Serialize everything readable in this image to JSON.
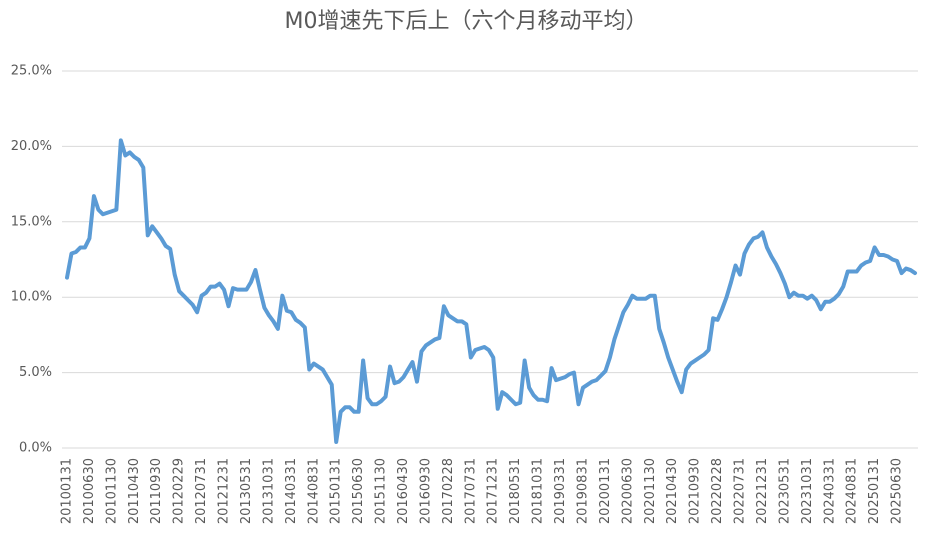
{
  "chart_data": {
    "type": "line",
    "title": "M0增速先下后上（六个月移动平均）",
    "categories": [
      "20100131",
      null,
      null,
      null,
      null,
      "20100630",
      null,
      null,
      null,
      null,
      "20101130",
      null,
      null,
      null,
      null,
      "20110430",
      null,
      null,
      null,
      null,
      "20110930",
      null,
      null,
      null,
      null,
      "20120229",
      null,
      null,
      null,
      null,
      "20120731",
      null,
      null,
      null,
      null,
      "20121231",
      null,
      null,
      null,
      null,
      "20130531",
      null,
      null,
      null,
      null,
      "20131031",
      null,
      null,
      null,
      null,
      "20140331",
      null,
      null,
      null,
      null,
      "20140831",
      null,
      null,
      null,
      null,
      "20150131",
      null,
      null,
      null,
      null,
      "20150630",
      null,
      null,
      null,
      null,
      "20151130",
      null,
      null,
      null,
      null,
      "20160430",
      null,
      null,
      null,
      null,
      "20160930",
      null,
      null,
      null,
      null,
      "20170228",
      null,
      null,
      null,
      null,
      "20170731",
      null,
      null,
      null,
      null,
      "20171231",
      null,
      null,
      null,
      null,
      "20180531",
      null,
      null,
      null,
      null,
      "20181031",
      null,
      null,
      null,
      null,
      "20190331",
      null,
      null,
      null,
      null,
      "20190831",
      null,
      null,
      null,
      null,
      "20200131",
      null,
      null,
      null,
      null,
      "20200630",
      null,
      null,
      null,
      null,
      "20201130",
      null,
      null,
      null,
      null,
      "20210430",
      null,
      null,
      null,
      null,
      "20210930",
      null,
      null,
      null,
      null,
      "20220228",
      null,
      null,
      null,
      null,
      "20220731",
      null,
      null,
      null,
      null,
      "20221231",
      null,
      null,
      null,
      null,
      "20230531",
      null,
      null,
      null,
      null,
      "20231031",
      null,
      null,
      null,
      null,
      "20240331",
      null,
      null,
      null,
      null,
      "20240831",
      null,
      null,
      null,
      null,
      "20250131",
      null,
      null,
      null,
      null,
      "20250630",
      null,
      null,
      null,
      null
    ],
    "values": [
      11.3,
      12.9,
      13.0,
      13.3,
      13.3,
      13.9,
      16.7,
      15.8,
      15.5,
      15.6,
      15.7,
      15.8,
      20.4,
      19.4,
      19.6,
      19.3,
      19.1,
      18.6,
      14.1,
      14.7,
      14.3,
      13.9,
      13.4,
      13.2,
      11.5,
      10.4,
      10.1,
      9.8,
      9.5,
      9.0,
      10.1,
      10.3,
      10.7,
      10.7,
      10.9,
      10.5,
      9.4,
      10.6,
      10.5,
      10.5,
      10.5,
      11.0,
      11.8,
      10.5,
      9.3,
      8.8,
      8.4,
      7.9,
      10.1,
      9.1,
      9.0,
      8.5,
      8.3,
      8.0,
      5.2,
      5.6,
      5.4,
      5.2,
      4.7,
      4.2,
      0.4,
      2.4,
      2.7,
      2.7,
      2.4,
      2.4,
      5.8,
      3.3,
      2.9,
      2.9,
      3.1,
      3.4,
      5.4,
      4.3,
      4.4,
      4.7,
      5.2,
      5.7,
      4.4,
      6.4,
      6.8,
      7.0,
      7.2,
      7.3,
      9.4,
      8.8,
      8.6,
      8.4,
      8.4,
      8.2,
      6.0,
      6.5,
      6.6,
      6.7,
      6.5,
      6.0,
      2.6,
      3.7,
      3.5,
      3.2,
      2.9,
      3.0,
      5.8,
      4.0,
      3.5,
      3.2,
      3.2,
      3.1,
      5.3,
      4.5,
      4.6,
      4.7,
      4.9,
      5.0,
      2.9,
      4.0,
      4.2,
      4.4,
      4.5,
      4.8,
      5.1,
      6.0,
      7.2,
      8.1,
      9.0,
      9.5,
      10.1,
      9.9,
      9.9,
      9.9,
      10.1,
      10.1,
      7.9,
      7.0,
      6.0,
      5.2,
      4.4,
      3.7,
      5.2,
      5.6,
      5.8,
      6.0,
      6.2,
      6.5,
      8.6,
      8.5,
      9.2,
      10.0,
      11.0,
      12.1,
      11.5,
      12.9,
      13.5,
      13.9,
      14.0,
      14.3,
      13.3,
      12.7,
      12.2,
      11.6,
      10.9,
      10.0,
      10.3,
      10.1,
      10.1,
      9.9,
      10.1,
      9.8,
      9.2,
      9.7,
      9.7,
      9.9,
      10.2,
      10.7,
      11.7,
      11.7,
      11.7,
      12.1,
      12.3,
      12.4,
      13.3,
      12.8,
      12.8,
      12.7,
      12.5,
      12.4,
      11.6,
      11.9,
      11.8,
      11.6
    ],
    "color": "#5b9bd5",
    "ylim": [
      0,
      25
    ],
    "yticks": [
      {
        "value": 0,
        "label": "0.0%"
      },
      {
        "value": 5,
        "label": "5.0%"
      },
      {
        "value": 10,
        "label": "10.0%"
      },
      {
        "value": 15,
        "label": "15.0%"
      },
      {
        "value": 20,
        "label": "20.0%"
      },
      {
        "value": 25,
        "label": "25.0%"
      }
    ],
    "grid": true
  }
}
